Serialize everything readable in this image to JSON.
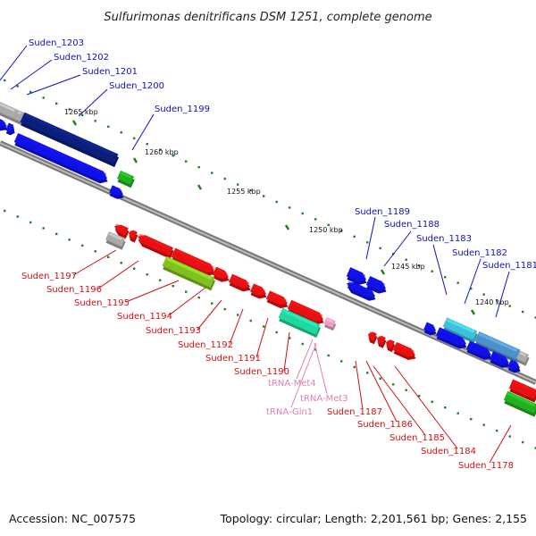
{
  "title": "Sulfurimonas denitrificans DSM 1251, complete genome",
  "footer": {
    "accession": "Accession: NC_007575",
    "topology": "Topology: circular; Length: 2,201,561 bp; Genes: 2,155"
  },
  "colors": {
    "cds_forward": "#1010e8",
    "cds_reverse": "#e81010",
    "cds_dark": "#0b1f7a",
    "pseudo": "#aaaaaa",
    "rrna": "#80c020",
    "trna": "#f0a0c8",
    "teal": "#20d8a0",
    "green": "#20b020",
    "sky": "#5090c8",
    "cyan": "#40c0d8",
    "backbone": "#888888",
    "tick": "#208020",
    "label_blue": "#1010c0",
    "label_red": "#d01010",
    "label_pink": "#e080b0"
  },
  "scale_labels": [
    "1265 kbp",
    "1260 kbp",
    "1255 kbp",
    "1250 kbp",
    "1245 kbp",
    "1240 kbp"
  ],
  "labels_top": [
    "Suden_1203",
    "Suden_1202",
    "Suden_1201",
    "Suden_1200",
    "Suden_1199",
    "Suden_1189",
    "Suden_1188",
    "Suden_1183",
    "Suden_1182",
    "Suden_1181"
  ],
  "labels_bottom": [
    "Suden_1197",
    "Suden_1196",
    "Suden_1195",
    "Suden_1194",
    "Suden_1193",
    "Suden_1192",
    "Suden_1191",
    "Suden_1190",
    "Suden_1187",
    "Suden_1186",
    "Suden_1185",
    "Suden_1184",
    "Suden_1178"
  ],
  "labels_trna": [
    "tRNA-Met4",
    "tRNA-Met3",
    "tRNA-Gln1"
  ]
}
